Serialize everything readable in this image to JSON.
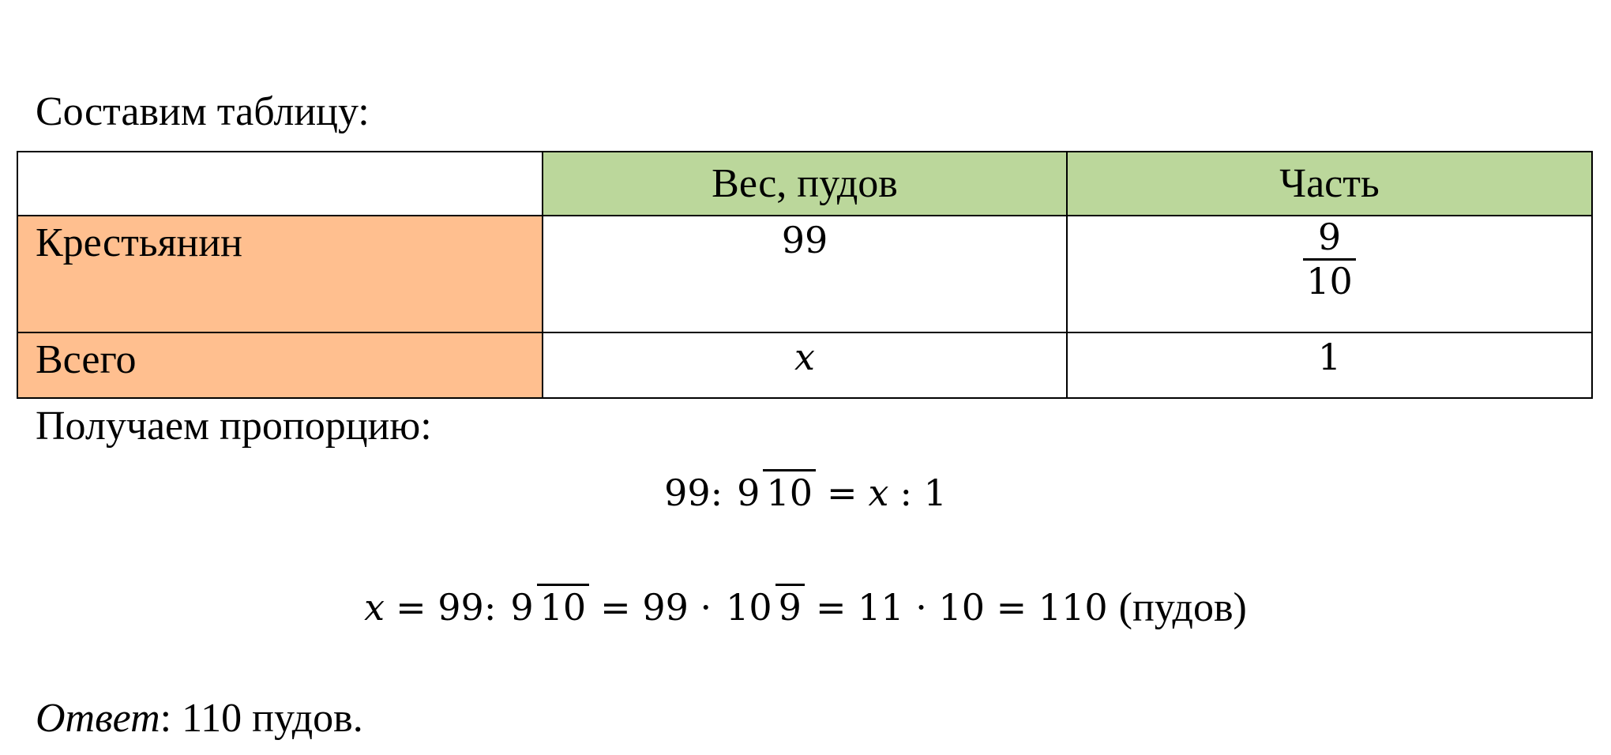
{
  "intro": "Составим таблицу:",
  "table": {
    "header": [
      "Вес, пудов",
      "Часть"
    ],
    "rows": [
      {
        "label": "Крестьянин",
        "weight": {
          "text": "99"
        },
        "part": {
          "num": "9",
          "den": "10"
        }
      },
      {
        "label": "Всего",
        "weight": {
          "var": "x"
        },
        "part": {
          "text": "1"
        }
      }
    ]
  },
  "proportion_intro": "Получаем пропорцию:",
  "equations": [
    {
      "parts": [
        {
          "text": "99:"
        },
        {
          "num": "9",
          "den": "10"
        },
        {
          "text": "="
        },
        {
          "var": "x"
        },
        {
          "text": ": 1"
        }
      ]
    },
    {
      "parts": [
        {
          "var": "x"
        },
        {
          "text": "= 99:"
        },
        {
          "num": "9",
          "den": "10"
        },
        {
          "text": "= 99 ·"
        },
        {
          "num": "10",
          "den": "9"
        },
        {
          "text": "= 11 · 10 = 110"
        },
        {
          "word": "(пудов)"
        }
      ]
    }
  ],
  "answer": {
    "label": "Ответ",
    "text": ": 110 пудов."
  }
}
